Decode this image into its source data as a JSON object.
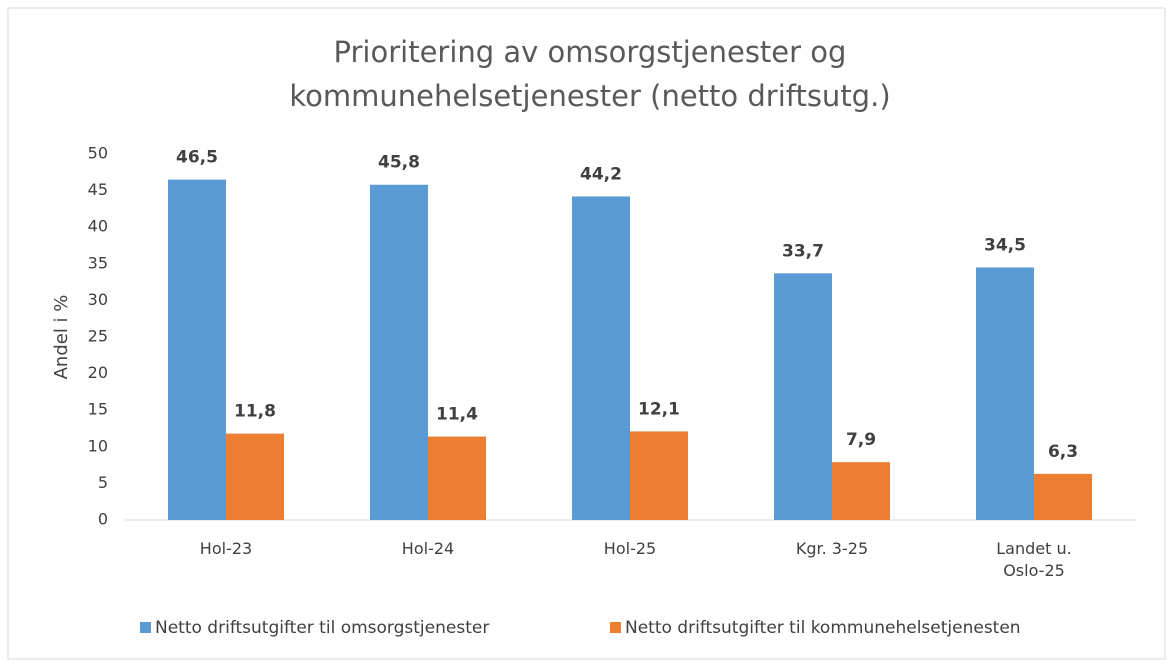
{
  "chart_data": {
    "type": "bar",
    "title": "Prioritering av omsorgstjenester og kommunehelsetjenester (netto driftsutg.)",
    "y_label": "Andel i %",
    "categories": [
      "Hol-23",
      "Hol-24",
      "Hol-25",
      "Kgr. 3-25",
      "Landet u. Oslo-25"
    ],
    "series": [
      {
        "name": "Netto driftsutgifter til omsorgstjenester",
        "color": "#5b9bd5",
        "values": [
          46.5,
          45.8,
          44.2,
          33.7,
          34.5
        ],
        "value_labels": [
          "46,5",
          "45,8",
          "44,2",
          "33,7",
          "34,5"
        ]
      },
      {
        "name": "Netto driftsutgifter til kommunehelsetjenesten",
        "color": "#ed7d31",
        "values": [
          11.8,
          11.4,
          12.1,
          7.9,
          6.3
        ],
        "value_labels": [
          "11,8",
          "11,4",
          "12,1",
          "7,9",
          "6,3"
        ]
      }
    ],
    "ylim": [
      0,
      50
    ],
    "yticks": [
      0,
      5,
      10,
      15,
      20,
      25,
      30,
      35,
      40,
      45,
      50
    ],
    "grid": false,
    "legend": "bottom"
  }
}
